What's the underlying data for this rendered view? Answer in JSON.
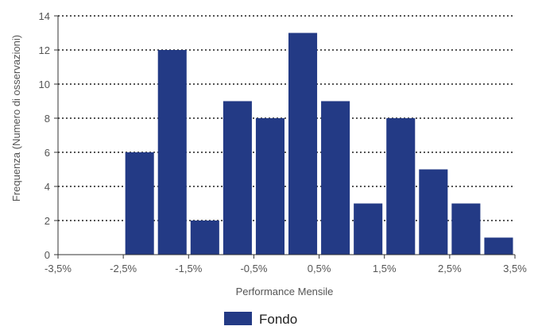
{
  "chart_data": {
    "type": "bar",
    "bin_edges": [
      -3.5,
      -3.0,
      -2.5,
      -2.0,
      -1.5,
      -1.0,
      -0.5,
      0.0,
      0.5,
      1.0,
      1.5,
      2.0,
      2.5,
      3.0,
      3.5
    ],
    "values": [
      0,
      0,
      6,
      12,
      2,
      9,
      8,
      13,
      9,
      3,
      8,
      5,
      3,
      1
    ],
    "xticks": [
      "-3,5%",
      "-2,5%",
      "-1,5%",
      "-0,5%",
      "0,5%",
      "1,5%",
      "2,5%",
      "3,5%"
    ],
    "xtick_values": [
      -3.5,
      -2.5,
      -1.5,
      -0.5,
      0.5,
      1.5,
      2.5,
      3.5
    ],
    "yticks": [
      "0",
      "2",
      "4",
      "6",
      "8",
      "10",
      "12",
      "14"
    ],
    "ytick_values": [
      0,
      2,
      4,
      6,
      8,
      10,
      12,
      14
    ],
    "xlabel": "Performance Mensile",
    "ylabel": "Frequenza (Numero di osservazioni)",
    "xlim": [
      -3.5,
      3.5
    ],
    "ylim": [
      0,
      14
    ],
    "grid": "horizontal dotted",
    "legend_position": "bottom-center",
    "series": [
      {
        "name": "Fondo",
        "color": "#233a85"
      }
    ]
  }
}
